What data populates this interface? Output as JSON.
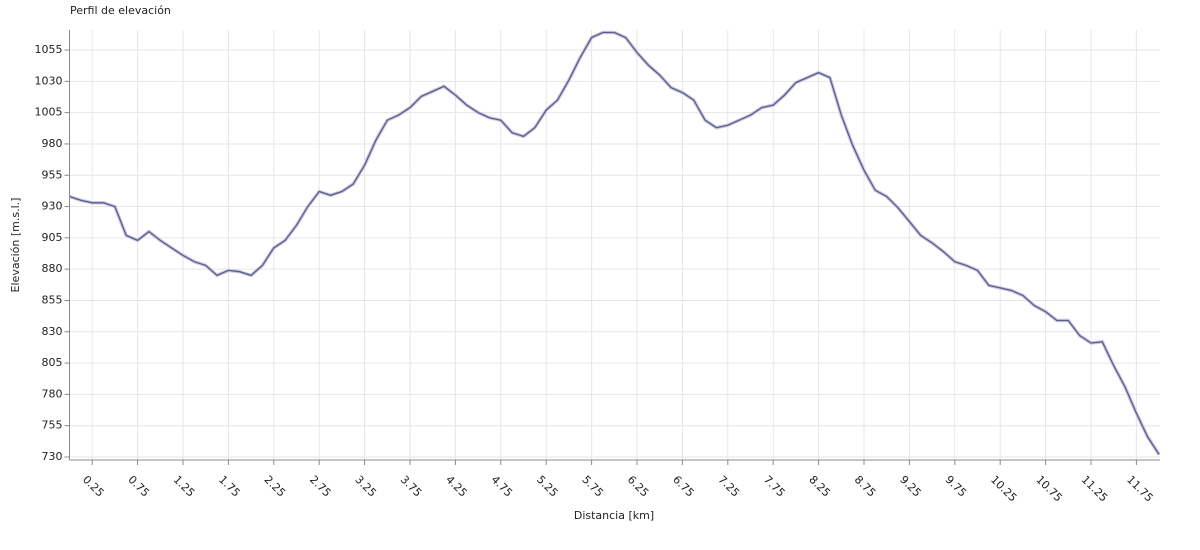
{
  "chart_data": {
    "type": "line",
    "title": "Perfil de elevación",
    "xlabel": "Distancia [km]",
    "ylabel": "Elevación [m.s.l.]",
    "x": [
      0,
      0.125,
      0.25,
      0.375,
      0.5,
      0.625,
      0.75,
      0.875,
      1,
      1.125,
      1.25,
      1.375,
      1.5,
      1.625,
      1.75,
      1.875,
      2,
      2.125,
      2.25,
      2.375,
      2.5,
      2.625,
      2.75,
      2.875,
      3,
      3.125,
      3.25,
      3.375,
      3.5,
      3.625,
      3.75,
      3.875,
      4,
      4.125,
      4.25,
      4.375,
      4.5,
      4.625,
      4.75,
      4.875,
      5,
      5.125,
      5.25,
      5.375,
      5.5,
      5.625,
      5.75,
      5.875,
      6,
      6.125,
      6.25,
      6.375,
      6.5,
      6.625,
      6.75,
      6.875,
      7,
      7.125,
      7.25,
      7.375,
      7.5,
      7.625,
      7.75,
      7.875,
      8,
      8.125,
      8.25,
      8.375,
      8.5,
      8.625,
      8.75,
      8.875,
      9,
      9.125,
      9.25,
      9.375,
      9.5,
      9.625,
      9.75,
      9.875,
      10,
      10.125,
      10.25,
      10.375,
      10.5,
      10.625,
      10.75,
      10.875,
      11,
      11.125,
      11.25,
      11.375,
      11.5,
      11.625,
      11.75,
      11.875,
      12
    ],
    "series": [
      {
        "name": "Elevación",
        "color": "#5c5c8c",
        "values": [
          938,
          935,
          933,
          933,
          930,
          907,
          903,
          910,
          903,
          897,
          891,
          886,
          883,
          875,
          879,
          878,
          875,
          883,
          897,
          903,
          915,
          930,
          942,
          939,
          942,
          948,
          963,
          983,
          999,
          1003,
          1009,
          1018,
          1022,
          1026,
          1019,
          1011,
          1005,
          1001,
          999,
          989,
          986,
          993,
          1007,
          1015,
          1031,
          1049,
          1065,
          1069,
          1069,
          1065,
          1053,
          1043,
          1035,
          1025,
          1021,
          1015,
          999,
          993,
          995,
          999,
          1003,
          1009,
          1011,
          1019,
          1029,
          1033,
          1037,
          1033,
          1003,
          979,
          959,
          943,
          938,
          929,
          918,
          907,
          901,
          894,
          886,
          883,
          879,
          867,
          865,
          863,
          859,
          851,
          846,
          839,
          839,
          827,
          821,
          822,
          803,
          786,
          765,
          746,
          732
        ]
      }
    ],
    "xlim": [
      0,
      12.01
    ],
    "ylim": [
      727.6,
      1071
    ],
    "xticks": [
      0.25,
      0.75,
      1.25,
      1.75,
      2.25,
      2.75,
      3.25,
      3.75,
      4.25,
      4.75,
      5.25,
      5.75,
      6.25,
      6.75,
      7.25,
      7.75,
      8.25,
      8.75,
      9.25,
      9.75,
      10.25,
      10.75,
      11.25,
      11.75
    ],
    "yticks": [
      730,
      755,
      780,
      805,
      830,
      855,
      880,
      905,
      930,
      955,
      980,
      1005,
      1030,
      1055
    ],
    "grid": true
  }
}
